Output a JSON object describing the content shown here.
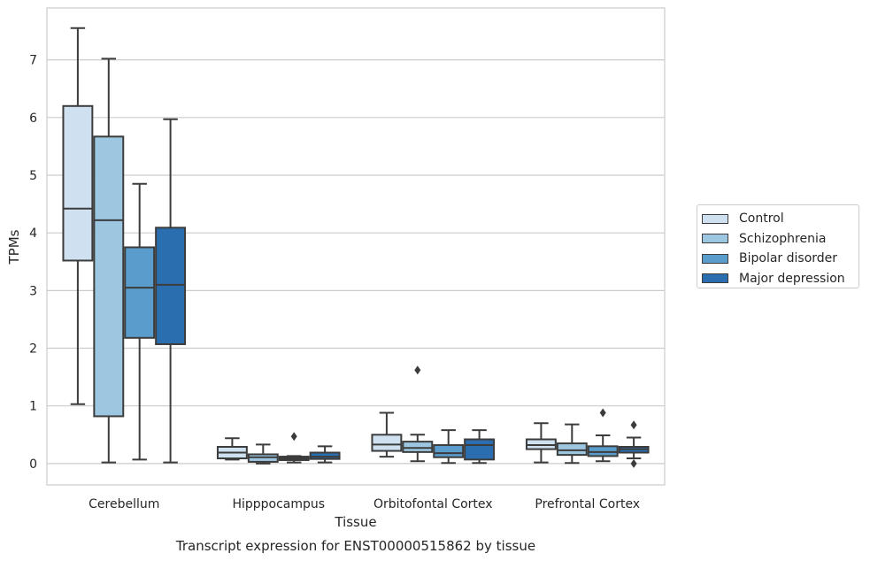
{
  "chart_data": {
    "type": "box",
    "title": "Transcript expression for ENST00000515862 by tissue",
    "xlabel": "Tissue",
    "ylabel": "TPMs",
    "ylim": [
      -0.37,
      7.9
    ],
    "yticks": [
      0,
      1,
      2,
      3,
      4,
      5,
      6,
      7
    ],
    "grid": "horizontal",
    "legend_position": "right",
    "categories": [
      "Cerebellum",
      "Hipppocampus",
      "Orbitofontal Cortex",
      "Prefrontal Cortex"
    ],
    "series": [
      {
        "name": "Control",
        "color": "#cfe0f0",
        "boxes": [
          {
            "min": 1.03,
            "q1": 3.52,
            "median": 4.42,
            "q3": 6.2,
            "max": 7.55,
            "outliers": []
          },
          {
            "min": 0.07,
            "q1": 0.09,
            "median": 0.19,
            "q3": 0.29,
            "max": 0.44,
            "outliers": []
          },
          {
            "min": 0.12,
            "q1": 0.22,
            "median": 0.33,
            "q3": 0.5,
            "max": 0.88,
            "outliers": []
          },
          {
            "min": 0.02,
            "q1": 0.25,
            "median": 0.32,
            "q3": 0.42,
            "max": 0.7,
            "outliers": []
          }
        ]
      },
      {
        "name": "Schizophrenia",
        "color": "#9dc6e0",
        "boxes": [
          {
            "min": 0.02,
            "q1": 0.82,
            "median": 4.22,
            "q3": 5.67,
            "max": 7.02,
            "outliers": []
          },
          {
            "min": 0.0,
            "q1": 0.03,
            "median": 0.11,
            "q3": 0.16,
            "max": 0.33,
            "outliers": []
          },
          {
            "min": 0.04,
            "q1": 0.2,
            "median": 0.27,
            "q3": 0.38,
            "max": 0.5,
            "outliers": [
              1.62
            ]
          },
          {
            "min": 0.01,
            "q1": 0.15,
            "median": 0.23,
            "q3": 0.35,
            "max": 0.68,
            "outliers": []
          }
        ]
      },
      {
        "name": "Bipolar disorder",
        "color": "#5a9dcc",
        "boxes": [
          {
            "min": 0.07,
            "q1": 2.18,
            "median": 3.05,
            "q3": 3.75,
            "max": 4.85,
            "outliers": []
          },
          {
            "min": 0.02,
            "q1": 0.06,
            "median": 0.09,
            "q3": 0.12,
            "max": 0.13,
            "outliers": [
              0.47
            ]
          },
          {
            "min": 0.01,
            "q1": 0.11,
            "median": 0.18,
            "q3": 0.32,
            "max": 0.58,
            "outliers": []
          },
          {
            "min": 0.04,
            "q1": 0.13,
            "median": 0.2,
            "q3": 0.3,
            "max": 0.49,
            "outliers": [
              0.88
            ]
          }
        ]
      },
      {
        "name": "Major depression",
        "color": "#2b6eaf",
        "boxes": [
          {
            "min": 0.02,
            "q1": 2.07,
            "median": 3.1,
            "q3": 4.09,
            "max": 5.97,
            "outliers": []
          },
          {
            "min": 0.02,
            "q1": 0.08,
            "median": 0.12,
            "q3": 0.19,
            "max": 0.3,
            "outliers": []
          },
          {
            "min": 0.01,
            "q1": 0.07,
            "median": 0.32,
            "q3": 0.42,
            "max": 0.58,
            "outliers": []
          },
          {
            "min": 0.09,
            "q1": 0.19,
            "median": 0.25,
            "q3": 0.29,
            "max": 0.45,
            "outliers": [
              0.67,
              0.0
            ]
          }
        ]
      }
    ]
  }
}
